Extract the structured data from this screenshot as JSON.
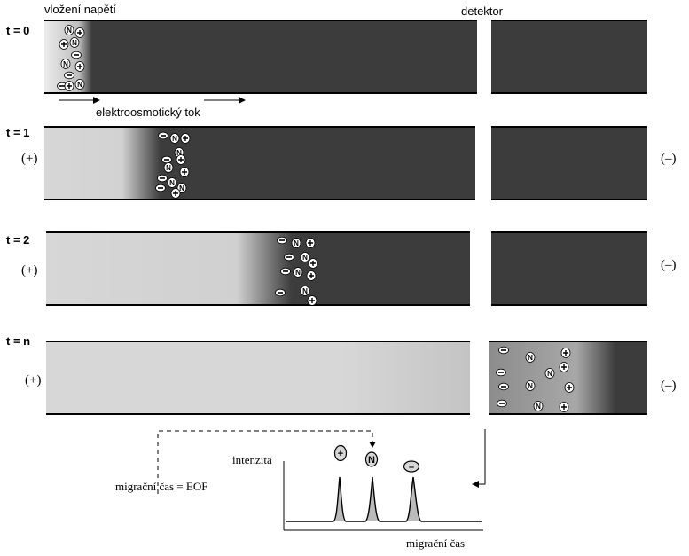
{
  "labels": {
    "voltage": "vložení napětí",
    "detector": "detektor",
    "eof_flow": "elektroosmotický tok",
    "intensity": "intenzita",
    "migration_time": "migrační čas",
    "migration_time_eof": "migrační čas = EOF"
  },
  "timesteps": [
    {
      "label": "t = 0"
    },
    {
      "label": "t = 1",
      "anode": "(+)",
      "cathode": "(–)"
    },
    {
      "label": "t = 2",
      "anode": "(+)",
      "cathode": "(–)"
    },
    {
      "label": "t = n",
      "anode": "(+)",
      "cathode": "(–)"
    }
  ],
  "peak_symbols": [
    "+",
    "N",
    "–"
  ],
  "colors": {
    "capillary_dark": "#3c3c3c",
    "buffer_light": "#d7d7d7",
    "peak_fill": "#bbbbbb"
  }
}
